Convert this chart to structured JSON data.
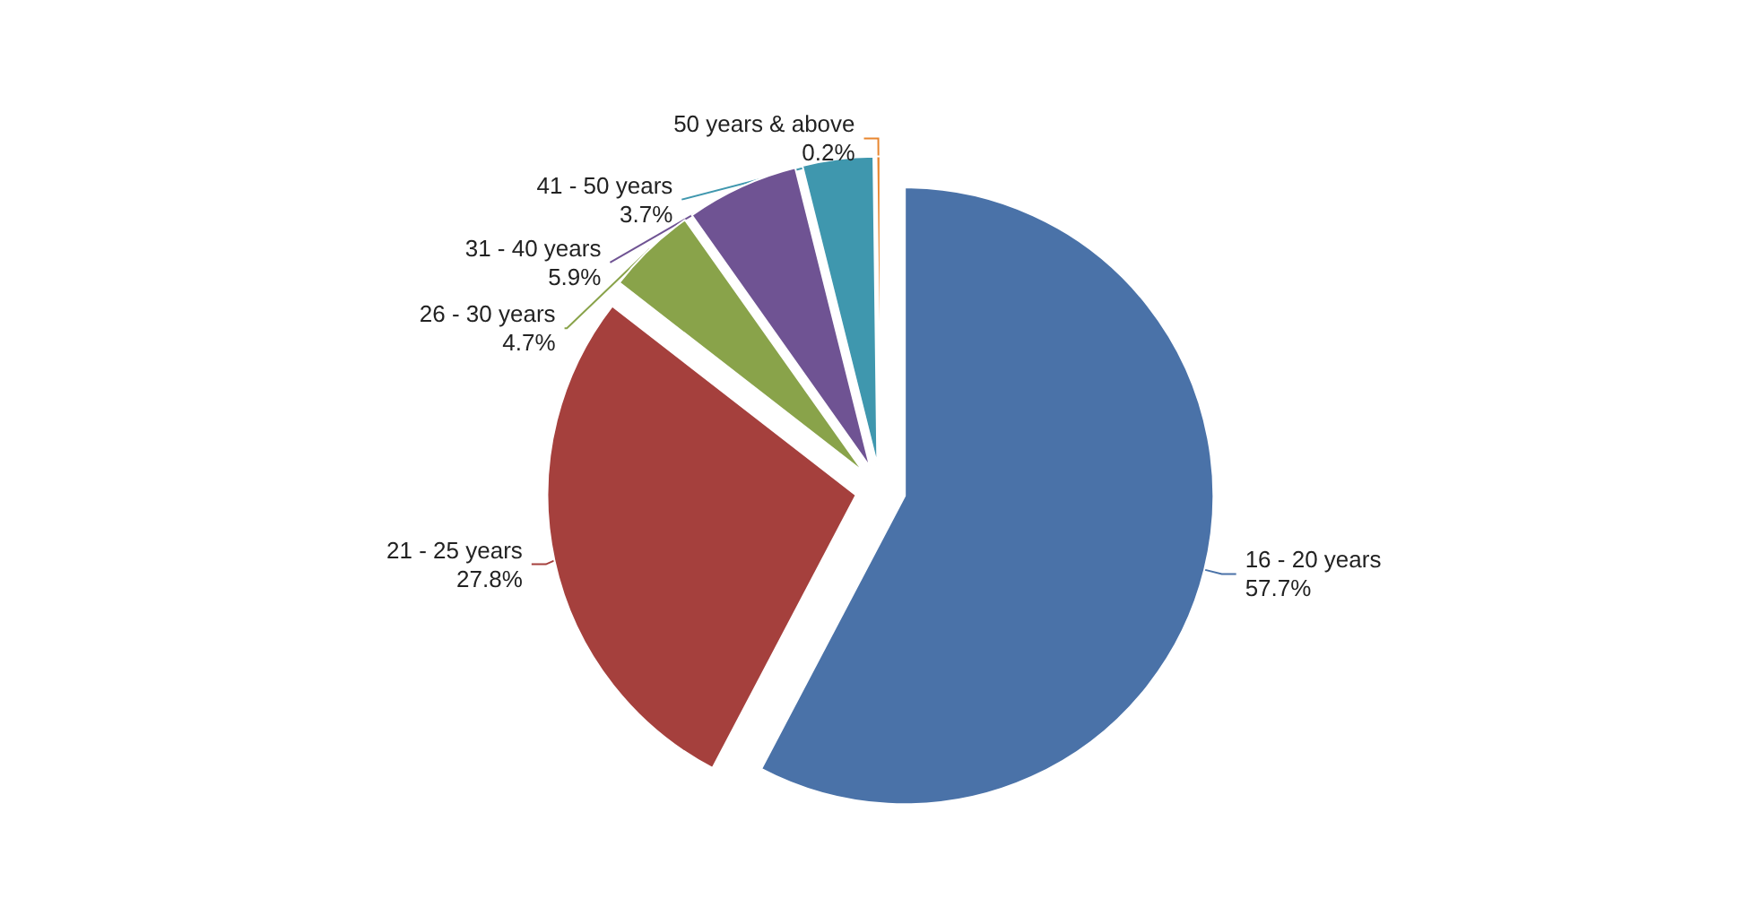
{
  "chart_data": {
    "type": "pie",
    "categories": [
      "16 - 20 years",
      "21 - 25 years",
      "26 - 30 years",
      "31 - 40 years",
      "41 - 50 years",
      "50 years & above"
    ],
    "values": [
      57.7,
      27.8,
      4.7,
      5.9,
      3.7,
      0.2
    ],
    "value_labels": [
      "57.7%",
      "27.8%",
      "4.7%",
      "5.9%",
      "3.7%",
      "0.2%"
    ],
    "colors": [
      "#4a72a8",
      "#a5403d",
      "#89a34a",
      "#6f5393",
      "#3f97ae",
      "#e8862e"
    ],
    "legend": false
  }
}
